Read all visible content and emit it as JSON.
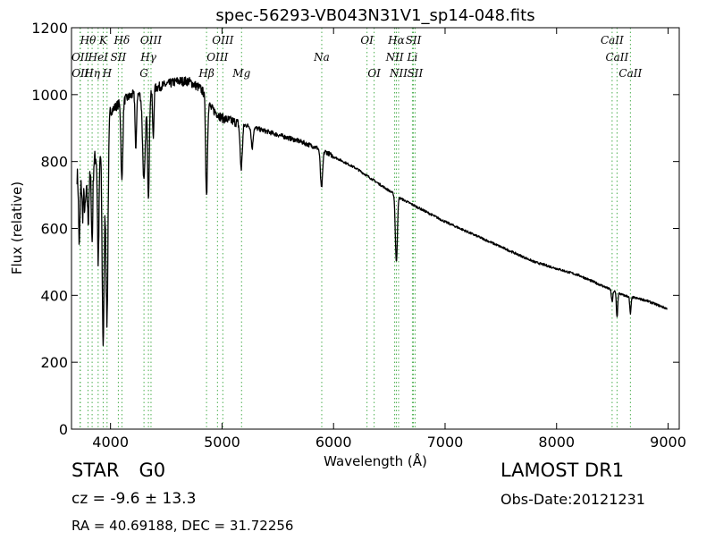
{
  "chart_data": {
    "type": "line",
    "title": "spec-56293-VB043N31V1_sp14-048.fits",
    "xlabel": "Wavelength (Å)",
    "ylabel": "Flux (relative)",
    "xlim": [
      3650,
      9100
    ],
    "ylim": [
      0,
      1200
    ],
    "xticks": [
      4000,
      5000,
      6000,
      7000,
      8000,
      9000
    ],
    "yticks": [
      0,
      200,
      400,
      600,
      800,
      1000,
      1200
    ],
    "grid": false,
    "legend": "none",
    "series_color": "#000000",
    "marker_color": "#4caf50",
    "continuum": [
      [
        3700,
        760
      ],
      [
        3780,
        700
      ],
      [
        3850,
        800
      ],
      [
        3900,
        840
      ],
      [
        3950,
        820
      ],
      [
        4000,
        950
      ],
      [
        4100,
        980
      ],
      [
        4200,
        1000
      ],
      [
        4300,
        1000
      ],
      [
        4400,
        1020
      ],
      [
        4500,
        1030
      ],
      [
        4600,
        1040
      ],
      [
        4700,
        1040
      ],
      [
        4800,
        1020
      ],
      [
        4850,
        1000
      ],
      [
        4900,
        960
      ],
      [
        5000,
        930
      ],
      [
        5100,
        920
      ],
      [
        5200,
        910
      ],
      [
        5300,
        900
      ],
      [
        5500,
        880
      ],
      [
        5700,
        860
      ],
      [
        5900,
        835
      ],
      [
        6000,
        815
      ],
      [
        6200,
        780
      ],
      [
        6400,
        735
      ],
      [
        6600,
        690
      ],
      [
        6800,
        655
      ],
      [
        7000,
        620
      ],
      [
        7200,
        590
      ],
      [
        7400,
        560
      ],
      [
        7600,
        530
      ],
      [
        7800,
        500
      ],
      [
        8000,
        480
      ],
      [
        8200,
        460
      ],
      [
        8400,
        430
      ],
      [
        8600,
        400
      ],
      [
        8800,
        385
      ],
      [
        8990,
        360
      ]
    ],
    "absorptions": [
      [
        3720,
        550,
        6
      ],
      [
        3750,
        640,
        5
      ],
      [
        3770,
        650,
        5
      ],
      [
        3800,
        620,
        5
      ],
      [
        3835,
        560,
        6
      ],
      [
        3890,
        500,
        7
      ],
      [
        3934,
        260,
        9
      ],
      [
        3968,
        320,
        9
      ],
      [
        4102,
        740,
        8
      ],
      [
        4227,
        830,
        6
      ],
      [
        4300,
        740,
        12
      ],
      [
        4340,
        700,
        8
      ],
      [
        4383,
        870,
        6
      ],
      [
        4861,
        700,
        8
      ],
      [
        5172,
        780,
        10
      ],
      [
        5270,
        840,
        8
      ],
      [
        5892,
        720,
        10
      ],
      [
        6563,
        500,
        9
      ],
      [
        8498,
        380,
        6
      ],
      [
        8542,
        335,
        6
      ],
      [
        8662,
        345,
        6
      ]
    ],
    "spectral_lines": [
      {
        "label": "OII",
        "x": 3727,
        "row": 2
      },
      {
        "label": "OII",
        "x": 3729,
        "row": 3
      },
      {
        "label": "Hθ",
        "x": 3798,
        "row": 1
      },
      {
        "label": "Hη",
        "x": 3835,
        "row": 3
      },
      {
        "label": "HeI",
        "x": 3889,
        "row": 2
      },
      {
        "label": "K",
        "x": 3934,
        "row": 1
      },
      {
        "label": "H",
        "x": 3969,
        "row": 3
      },
      {
        "label": "SII",
        "x": 4070,
        "row": 2
      },
      {
        "label": "Hδ",
        "x": 4102,
        "row": 1
      },
      {
        "label": "G",
        "x": 4300,
        "row": 3
      },
      {
        "label": "Hγ",
        "x": 4340,
        "row": 2
      },
      {
        "label": "OIII",
        "x": 4363,
        "row": 1
      },
      {
        "label": "Hβ",
        "x": 4861,
        "row": 3
      },
      {
        "label": "OIII",
        "x": 4959,
        "row": 2
      },
      {
        "label": "OIII",
        "x": 5007,
        "row": 1
      },
      {
        "label": "Mg",
        "x": 5175,
        "row": 3
      },
      {
        "label": "Na",
        "x": 5894,
        "row": 2
      },
      {
        "label": "OI",
        "x": 6300,
        "row": 1
      },
      {
        "label": "OI",
        "x": 6364,
        "row": 3
      },
      {
        "label": "NII",
        "x": 6548,
        "row": 2
      },
      {
        "label": "Hα",
        "x": 6563,
        "row": 1
      },
      {
        "label": "NII",
        "x": 6583,
        "row": 3
      },
      {
        "label": "Li",
        "x": 6707,
        "row": 2
      },
      {
        "label": "SII",
        "x": 6716,
        "row": 1
      },
      {
        "label": "SII",
        "x": 6731,
        "row": 3
      },
      {
        "label": "CaII",
        "x": 8498,
        "row": 1
      },
      {
        "label": "CaII",
        "x": 8542,
        "row": 2
      },
      {
        "label": "CaII",
        "x": 8662,
        "row": 3
      }
    ]
  },
  "footer": {
    "object_type": "STAR",
    "subclass": "G0",
    "survey": "LAMOST DR1",
    "cz": "cz = -9.6 ± 13.3",
    "obs_date": "Obs-Date:20121231",
    "radec": "RA = 40.69188, DEC = 31.72256"
  }
}
